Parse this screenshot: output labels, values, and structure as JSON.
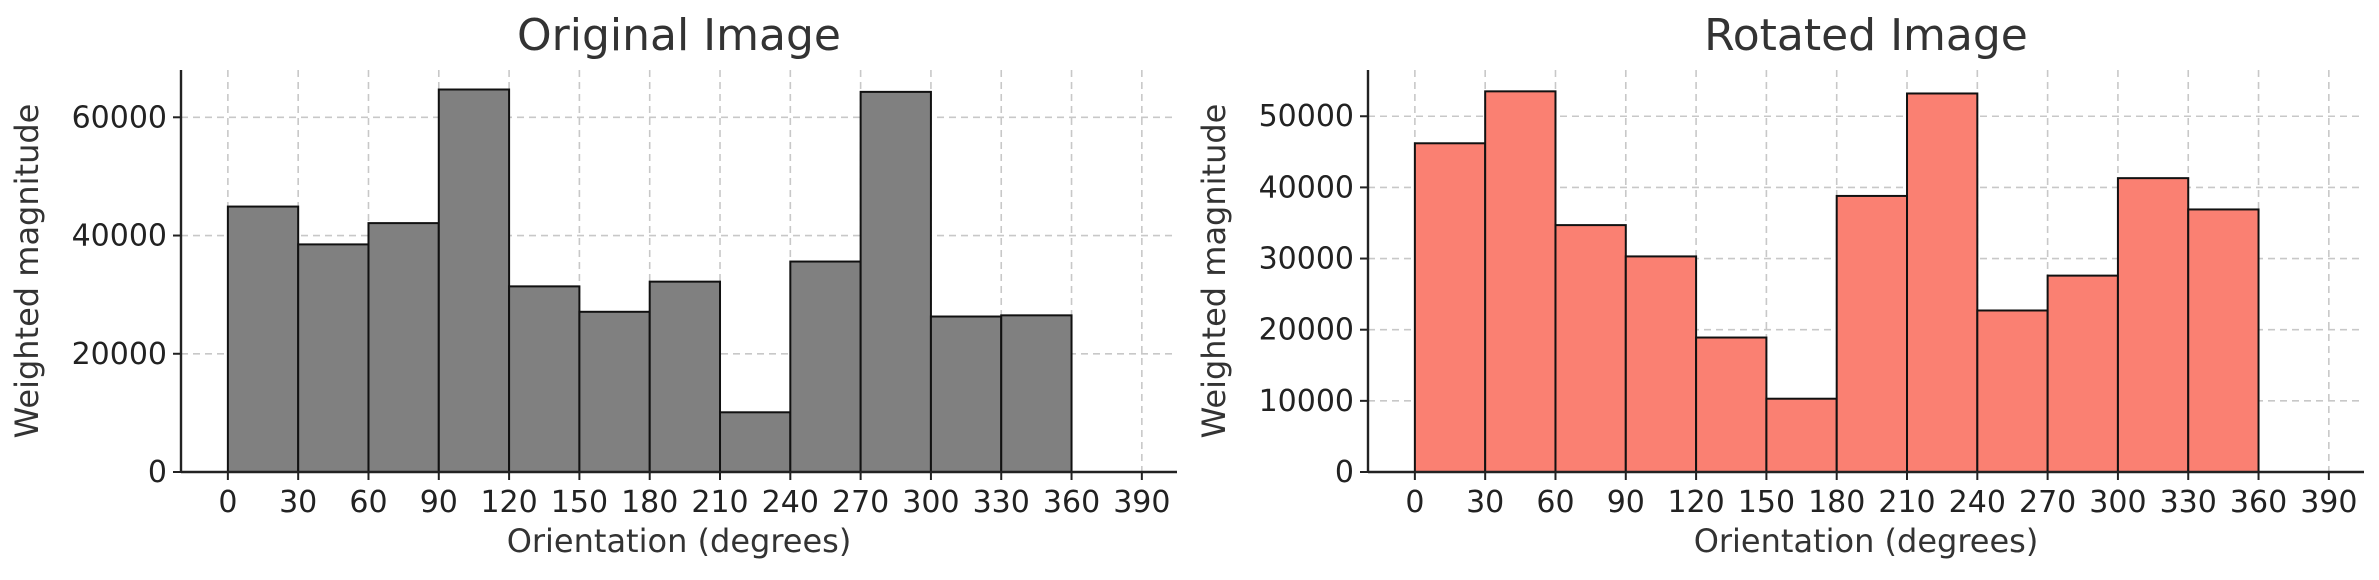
{
  "chart_data": [
    {
      "type": "bar",
      "title": "Original Image",
      "xlabel": "Orientation (degrees)",
      "ylabel": "Weighted magnitude",
      "bin_edges": [
        0,
        30,
        60,
        90,
        120,
        150,
        180,
        210,
        240,
        270,
        300,
        330,
        360
      ],
      "values": [
        44900,
        38500,
        42100,
        64700,
        31400,
        27100,
        32200,
        10100,
        35600,
        64300,
        26300,
        26500
      ],
      "xlim": [
        -20,
        405
      ],
      "ylim": [
        0,
        68000
      ],
      "xticks": [
        0,
        30,
        60,
        90,
        120,
        150,
        180,
        210,
        240,
        270,
        300,
        330,
        360,
        390
      ],
      "xtick_labels": [
        "0",
        "30",
        "60",
        "90",
        "120",
        "150",
        "180",
        "210",
        "240",
        "270",
        "300",
        "330",
        "360",
        "390"
      ],
      "yticks": [
        0,
        20000,
        40000,
        60000
      ],
      "ytick_labels": [
        "0",
        "20000",
        "40000",
        "60000"
      ],
      "grid": true,
      "color": "#808080"
    },
    {
      "type": "bar",
      "title": "Rotated Image",
      "xlabel": "Orientation (degrees)",
      "ylabel": "Weighted magnitude",
      "bin_edges": [
        0,
        30,
        60,
        90,
        120,
        150,
        180,
        210,
        240,
        270,
        300,
        330,
        360
      ],
      "values": [
        46200,
        53500,
        34700,
        30300,
        18900,
        10300,
        38800,
        53200,
        22700,
        27600,
        41300,
        36900
      ],
      "xlim": [
        -20,
        405
      ],
      "ylim": [
        0,
        56500
      ],
      "xticks": [
        0,
        30,
        60,
        90,
        120,
        150,
        180,
        210,
        240,
        270,
        300,
        330,
        360,
        390
      ],
      "xtick_labels": [
        "0",
        "30",
        "60",
        "90",
        "120",
        "150",
        "180",
        "210",
        "240",
        "270",
        "300",
        "330",
        "360",
        "390"
      ],
      "yticks": [
        0,
        10000,
        20000,
        30000,
        40000,
        50000
      ],
      "ytick_labels": [
        "0",
        "10000",
        "20000",
        "30000",
        "40000",
        "50000"
      ],
      "grid": true,
      "color": "#fa8072"
    }
  ]
}
